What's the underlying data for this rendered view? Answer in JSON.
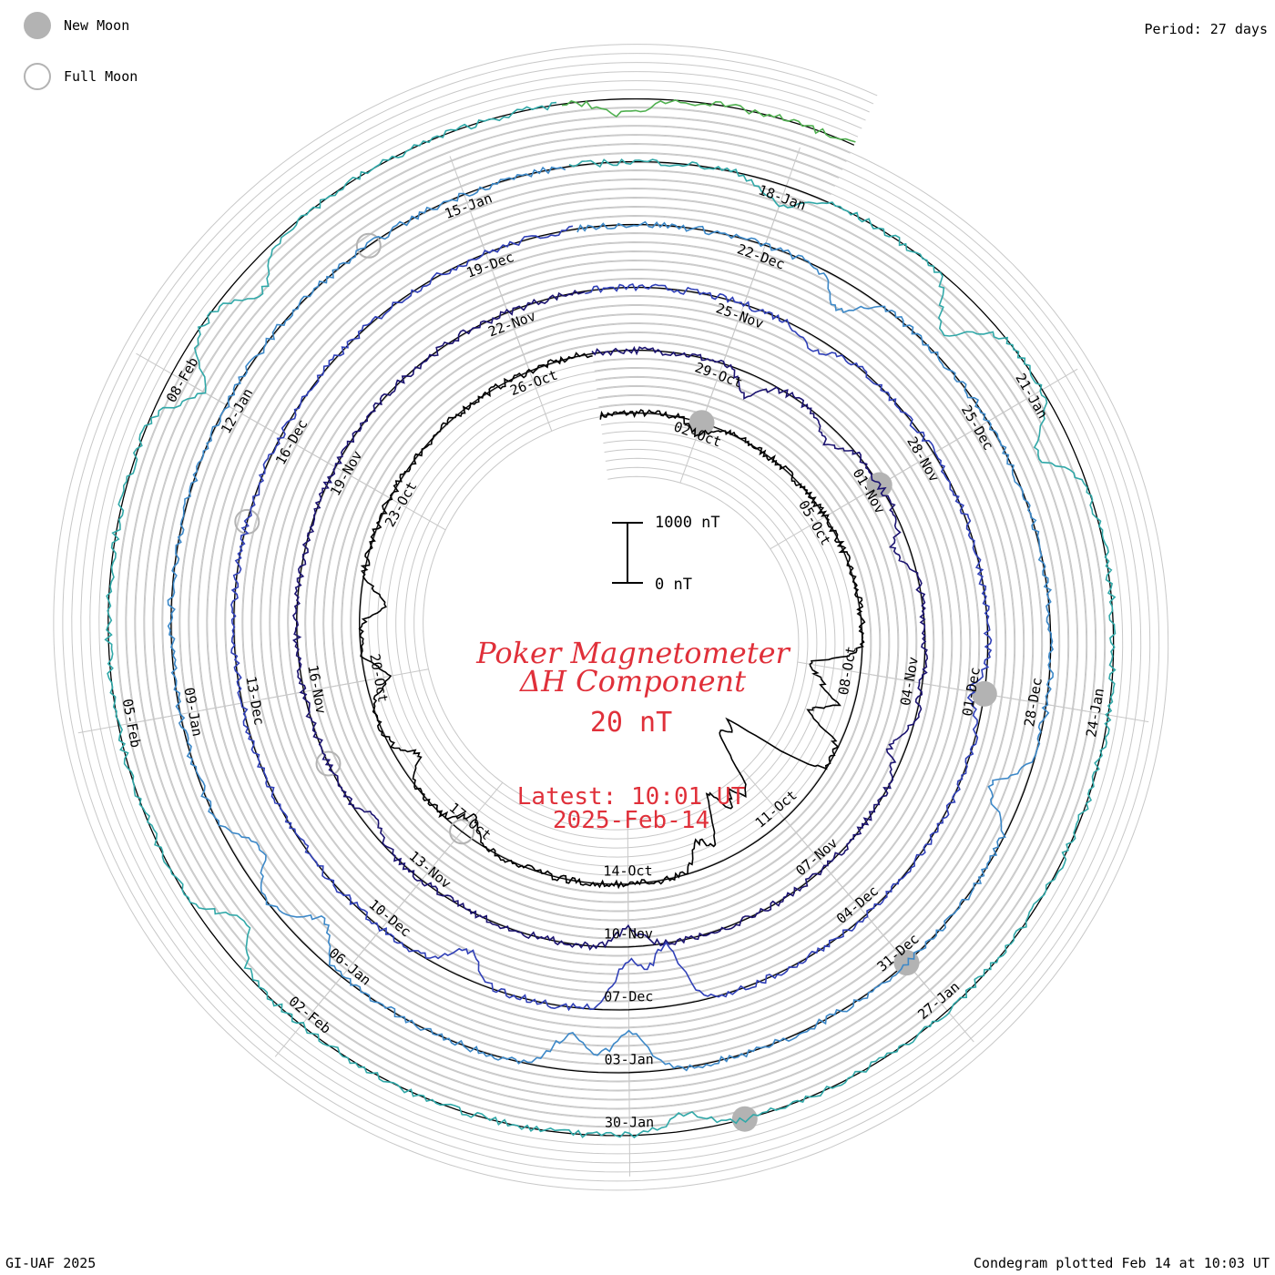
{
  "header": {
    "period": "Period: 27 days",
    "legend": {
      "new_moon": "New Moon",
      "full_moon": "Full Moon"
    }
  },
  "footer": {
    "left": "GI-UAF 2025",
    "right": "Condegram plotted Feb 14 at 10:03 UT"
  },
  "title": {
    "line1": "Poker Magnetometer",
    "line2": "ΔH Component",
    "scale": "20 nT",
    "latest": "Latest: 10:01 UT",
    "date": "2025-Feb-14"
  },
  "scale_bar": {
    "top": "1000 nT",
    "bottom": "0 nT"
  },
  "colors": {
    "moon": "#b3b3b3",
    "title": "#e0303a",
    "grid": "#c8c8c8"
  },
  "chart_data": {
    "type": "line",
    "subtype": "spiral condegram",
    "period_days": 27,
    "start_date": "2024-09-30",
    "end_date": "2025-02-14",
    "y_unit": "nT",
    "scale_bar_nT": [
      0,
      1000
    ],
    "day_labels": [
      {
        "label": "02-Oct",
        "day": 2
      },
      {
        "label": "05-Oct",
        "day": 5
      },
      {
        "label": "08-Oct",
        "day": 8
      },
      {
        "label": "11-Oct",
        "day": 11
      },
      {
        "label": "14-Oct",
        "day": 14
      },
      {
        "label": "17-Oct",
        "day": 17
      },
      {
        "label": "20-Oct",
        "day": 20
      },
      {
        "label": "23-Oct",
        "day": 23
      },
      {
        "label": "26-Oct",
        "day": 26
      },
      {
        "label": "29-Oct",
        "day": 29
      },
      {
        "label": "01-Nov",
        "day": 32
      },
      {
        "label": "04-Nov",
        "day": 35
      },
      {
        "label": "07-Nov",
        "day": 38
      },
      {
        "label": "10-Nov",
        "day": 41
      },
      {
        "label": "13-Nov",
        "day": 44
      },
      {
        "label": "16-Nov",
        "day": 47
      },
      {
        "label": "19-Nov",
        "day": 50
      },
      {
        "label": "22-Nov",
        "day": 53
      },
      {
        "label": "25-Nov",
        "day": 56
      },
      {
        "label": "28-Nov",
        "day": 59
      },
      {
        "label": "01-Dec",
        "day": 62
      },
      {
        "label": "04-Dec",
        "day": 65
      },
      {
        "label": "07-Dec",
        "day": 68
      },
      {
        "label": "10-Dec",
        "day": 71
      },
      {
        "label": "13-Dec",
        "day": 74
      },
      {
        "label": "16-Dec",
        "day": 77
      },
      {
        "label": "19-Dec",
        "day": 80
      },
      {
        "label": "22-Dec",
        "day": 83
      },
      {
        "label": "25-Dec",
        "day": 86
      },
      {
        "label": "28-Dec",
        "day": 89
      },
      {
        "label": "31-Dec",
        "day": 92
      },
      {
        "label": "03-Jan",
        "day": 95
      },
      {
        "label": "06-Jan",
        "day": 98
      },
      {
        "label": "09-Jan",
        "day": 101
      },
      {
        "label": "12-Jan",
        "day": 104
      },
      {
        "label": "15-Jan",
        "day": 107
      },
      {
        "label": "18-Jan",
        "day": 110
      },
      {
        "label": "21-Jan",
        "day": 113
      },
      {
        "label": "24-Jan",
        "day": 116
      },
      {
        "label": "27-Jan",
        "day": 119
      },
      {
        "label": "30-Jan",
        "day": 122
      },
      {
        "label": "02-Feb",
        "day": 125
      },
      {
        "label": "05-Feb",
        "day": 128
      },
      {
        "label": "08-Feb",
        "day": 131
      }
    ],
    "new_moons_day": [
      2,
      32,
      62,
      92,
      121
    ],
    "full_moons_day": [
      17,
      46,
      76,
      106
    ],
    "disturbances": [
      {
        "day": 2.0,
        "nT": -200
      },
      {
        "day": 8.0,
        "nT": -850
      },
      {
        "day": 8.4,
        "nT": -500
      },
      {
        "day": 9.0,
        "nT": -700
      },
      {
        "day": 10.3,
        "nT": -1700
      },
      {
        "day": 10.7,
        "nT": -1400
      },
      {
        "day": 11.0,
        "nT": -1100
      },
      {
        "day": 11.5,
        "nT": -900
      },
      {
        "day": 12.0,
        "nT": -1100
      },
      {
        "day": 12.6,
        "nT": -450
      },
      {
        "day": 17.0,
        "nT": -300
      },
      {
        "day": 18.5,
        "nT": -350
      },
      {
        "day": 20.0,
        "nT": -400
      },
      {
        "day": 21.3,
        "nT": -420
      },
      {
        "day": 29.5,
        "nT": -380
      },
      {
        "day": 31.0,
        "nT": -250
      },
      {
        "day": 33.0,
        "nT": -280
      },
      {
        "day": 36.0,
        "nT": -260
      },
      {
        "day": 41.0,
        "nT": -300
      },
      {
        "day": 45.0,
        "nT": -200
      },
      {
        "day": 57.0,
        "nT": -200
      },
      {
        "day": 62.0,
        "nT": -220
      },
      {
        "day": 67.5,
        "nT": -1000
      },
      {
        "day": 68.0,
        "nT": -800
      },
      {
        "day": 70.0,
        "nT": -450
      },
      {
        "day": 84.0,
        "nT": -450
      },
      {
        "day": 90.0,
        "nT": -550
      },
      {
        "day": 95.0,
        "nT": -700
      },
      {
        "day": 95.6,
        "nT": -600
      },
      {
        "day": 98.5,
        "nT": -500
      },
      {
        "day": 99.5,
        "nT": -450
      },
      {
        "day": 110.0,
        "nT": -350
      },
      {
        "day": 112.0,
        "nT": -700
      },
      {
        "day": 113.5,
        "nT": -600
      },
      {
        "day": 121.5,
        "nT": -280
      },
      {
        "day": 126.0,
        "nT": -550
      },
      {
        "day": 131.0,
        "nT": -600
      },
      {
        "day": 132.0,
        "nT": -450
      },
      {
        "day": 135.5,
        "nT": -250
      }
    ],
    "series_colors": [
      "#000000",
      "#1b1370",
      "#3040b8",
      "#3c88c8",
      "#30a8a8",
      "#50b050",
      "#8ab828",
      "#a89a18",
      "#c07a10",
      "#b84010",
      "#b01010"
    ]
  }
}
